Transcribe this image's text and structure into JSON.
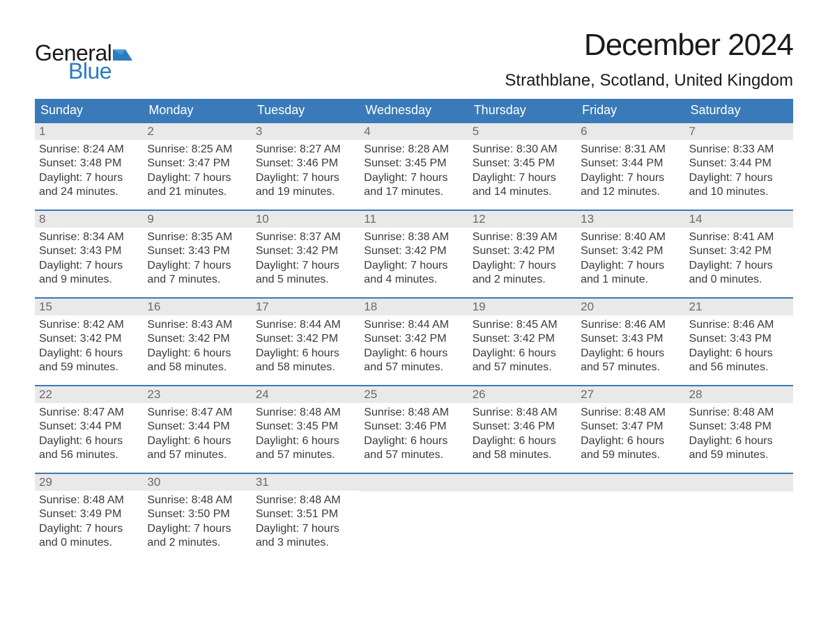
{
  "brand": {
    "part1": "General",
    "part2": "Blue",
    "flag_color": "#2a7cc0"
  },
  "title": "December 2024",
  "location": "Strathblane, Scotland, United Kingdom",
  "colors": {
    "header_bg": "#3a7ab8",
    "header_text": "#ffffff",
    "daynum_bg": "#e9e9e9",
    "daynum_text": "#6a6a6a",
    "body_text": "#3a3a3a",
    "week_border": "#3a7ab8"
  },
  "day_headers": [
    "Sunday",
    "Monday",
    "Tuesday",
    "Wednesday",
    "Thursday",
    "Friday",
    "Saturday"
  ],
  "weeks": [
    [
      {
        "n": "1",
        "sunrise": "8:24 AM",
        "sunset": "3:48 PM",
        "d1": "Daylight: 7 hours",
        "d2": "and 24 minutes."
      },
      {
        "n": "2",
        "sunrise": "8:25 AM",
        "sunset": "3:47 PM",
        "d1": "Daylight: 7 hours",
        "d2": "and 21 minutes."
      },
      {
        "n": "3",
        "sunrise": "8:27 AM",
        "sunset": "3:46 PM",
        "d1": "Daylight: 7 hours",
        "d2": "and 19 minutes."
      },
      {
        "n": "4",
        "sunrise": "8:28 AM",
        "sunset": "3:45 PM",
        "d1": "Daylight: 7 hours",
        "d2": "and 17 minutes."
      },
      {
        "n": "5",
        "sunrise": "8:30 AM",
        "sunset": "3:45 PM",
        "d1": "Daylight: 7 hours",
        "d2": "and 14 minutes."
      },
      {
        "n": "6",
        "sunrise": "8:31 AM",
        "sunset": "3:44 PM",
        "d1": "Daylight: 7 hours",
        "d2": "and 12 minutes."
      },
      {
        "n": "7",
        "sunrise": "8:33 AM",
        "sunset": "3:44 PM",
        "d1": "Daylight: 7 hours",
        "d2": "and 10 minutes."
      }
    ],
    [
      {
        "n": "8",
        "sunrise": "8:34 AM",
        "sunset": "3:43 PM",
        "d1": "Daylight: 7 hours",
        "d2": "and 9 minutes."
      },
      {
        "n": "9",
        "sunrise": "8:35 AM",
        "sunset": "3:43 PM",
        "d1": "Daylight: 7 hours",
        "d2": "and 7 minutes."
      },
      {
        "n": "10",
        "sunrise": "8:37 AM",
        "sunset": "3:42 PM",
        "d1": "Daylight: 7 hours",
        "d2": "and 5 minutes."
      },
      {
        "n": "11",
        "sunrise": "8:38 AM",
        "sunset": "3:42 PM",
        "d1": "Daylight: 7 hours",
        "d2": "and 4 minutes."
      },
      {
        "n": "12",
        "sunrise": "8:39 AM",
        "sunset": "3:42 PM",
        "d1": "Daylight: 7 hours",
        "d2": "and 2 minutes."
      },
      {
        "n": "13",
        "sunrise": "8:40 AM",
        "sunset": "3:42 PM",
        "d1": "Daylight: 7 hours",
        "d2": "and 1 minute."
      },
      {
        "n": "14",
        "sunrise": "8:41 AM",
        "sunset": "3:42 PM",
        "d1": "Daylight: 7 hours",
        "d2": "and 0 minutes."
      }
    ],
    [
      {
        "n": "15",
        "sunrise": "8:42 AM",
        "sunset": "3:42 PM",
        "d1": "Daylight: 6 hours",
        "d2": "and 59 minutes."
      },
      {
        "n": "16",
        "sunrise": "8:43 AM",
        "sunset": "3:42 PM",
        "d1": "Daylight: 6 hours",
        "d2": "and 58 minutes."
      },
      {
        "n": "17",
        "sunrise": "8:44 AM",
        "sunset": "3:42 PM",
        "d1": "Daylight: 6 hours",
        "d2": "and 58 minutes."
      },
      {
        "n": "18",
        "sunrise": "8:44 AM",
        "sunset": "3:42 PM",
        "d1": "Daylight: 6 hours",
        "d2": "and 57 minutes."
      },
      {
        "n": "19",
        "sunrise": "8:45 AM",
        "sunset": "3:42 PM",
        "d1": "Daylight: 6 hours",
        "d2": "and 57 minutes."
      },
      {
        "n": "20",
        "sunrise": "8:46 AM",
        "sunset": "3:43 PM",
        "d1": "Daylight: 6 hours",
        "d2": "and 57 minutes."
      },
      {
        "n": "21",
        "sunrise": "8:46 AM",
        "sunset": "3:43 PM",
        "d1": "Daylight: 6 hours",
        "d2": "and 56 minutes."
      }
    ],
    [
      {
        "n": "22",
        "sunrise": "8:47 AM",
        "sunset": "3:44 PM",
        "d1": "Daylight: 6 hours",
        "d2": "and 56 minutes."
      },
      {
        "n": "23",
        "sunrise": "8:47 AM",
        "sunset": "3:44 PM",
        "d1": "Daylight: 6 hours",
        "d2": "and 57 minutes."
      },
      {
        "n": "24",
        "sunrise": "8:48 AM",
        "sunset": "3:45 PM",
        "d1": "Daylight: 6 hours",
        "d2": "and 57 minutes."
      },
      {
        "n": "25",
        "sunrise": "8:48 AM",
        "sunset": "3:46 PM",
        "d1": "Daylight: 6 hours",
        "d2": "and 57 minutes."
      },
      {
        "n": "26",
        "sunrise": "8:48 AM",
        "sunset": "3:46 PM",
        "d1": "Daylight: 6 hours",
        "d2": "and 58 minutes."
      },
      {
        "n": "27",
        "sunrise": "8:48 AM",
        "sunset": "3:47 PM",
        "d1": "Daylight: 6 hours",
        "d2": "and 59 minutes."
      },
      {
        "n": "28",
        "sunrise": "8:48 AM",
        "sunset": "3:48 PM",
        "d1": "Daylight: 6 hours",
        "d2": "and 59 minutes."
      }
    ],
    [
      {
        "n": "29",
        "sunrise": "8:48 AM",
        "sunset": "3:49 PM",
        "d1": "Daylight: 7 hours",
        "d2": "and 0 minutes."
      },
      {
        "n": "30",
        "sunrise": "8:48 AM",
        "sunset": "3:50 PM",
        "d1": "Daylight: 7 hours",
        "d2": "and 2 minutes."
      },
      {
        "n": "31",
        "sunrise": "8:48 AM",
        "sunset": "3:51 PM",
        "d1": "Daylight: 7 hours",
        "d2": "and 3 minutes."
      },
      null,
      null,
      null,
      null
    ]
  ]
}
